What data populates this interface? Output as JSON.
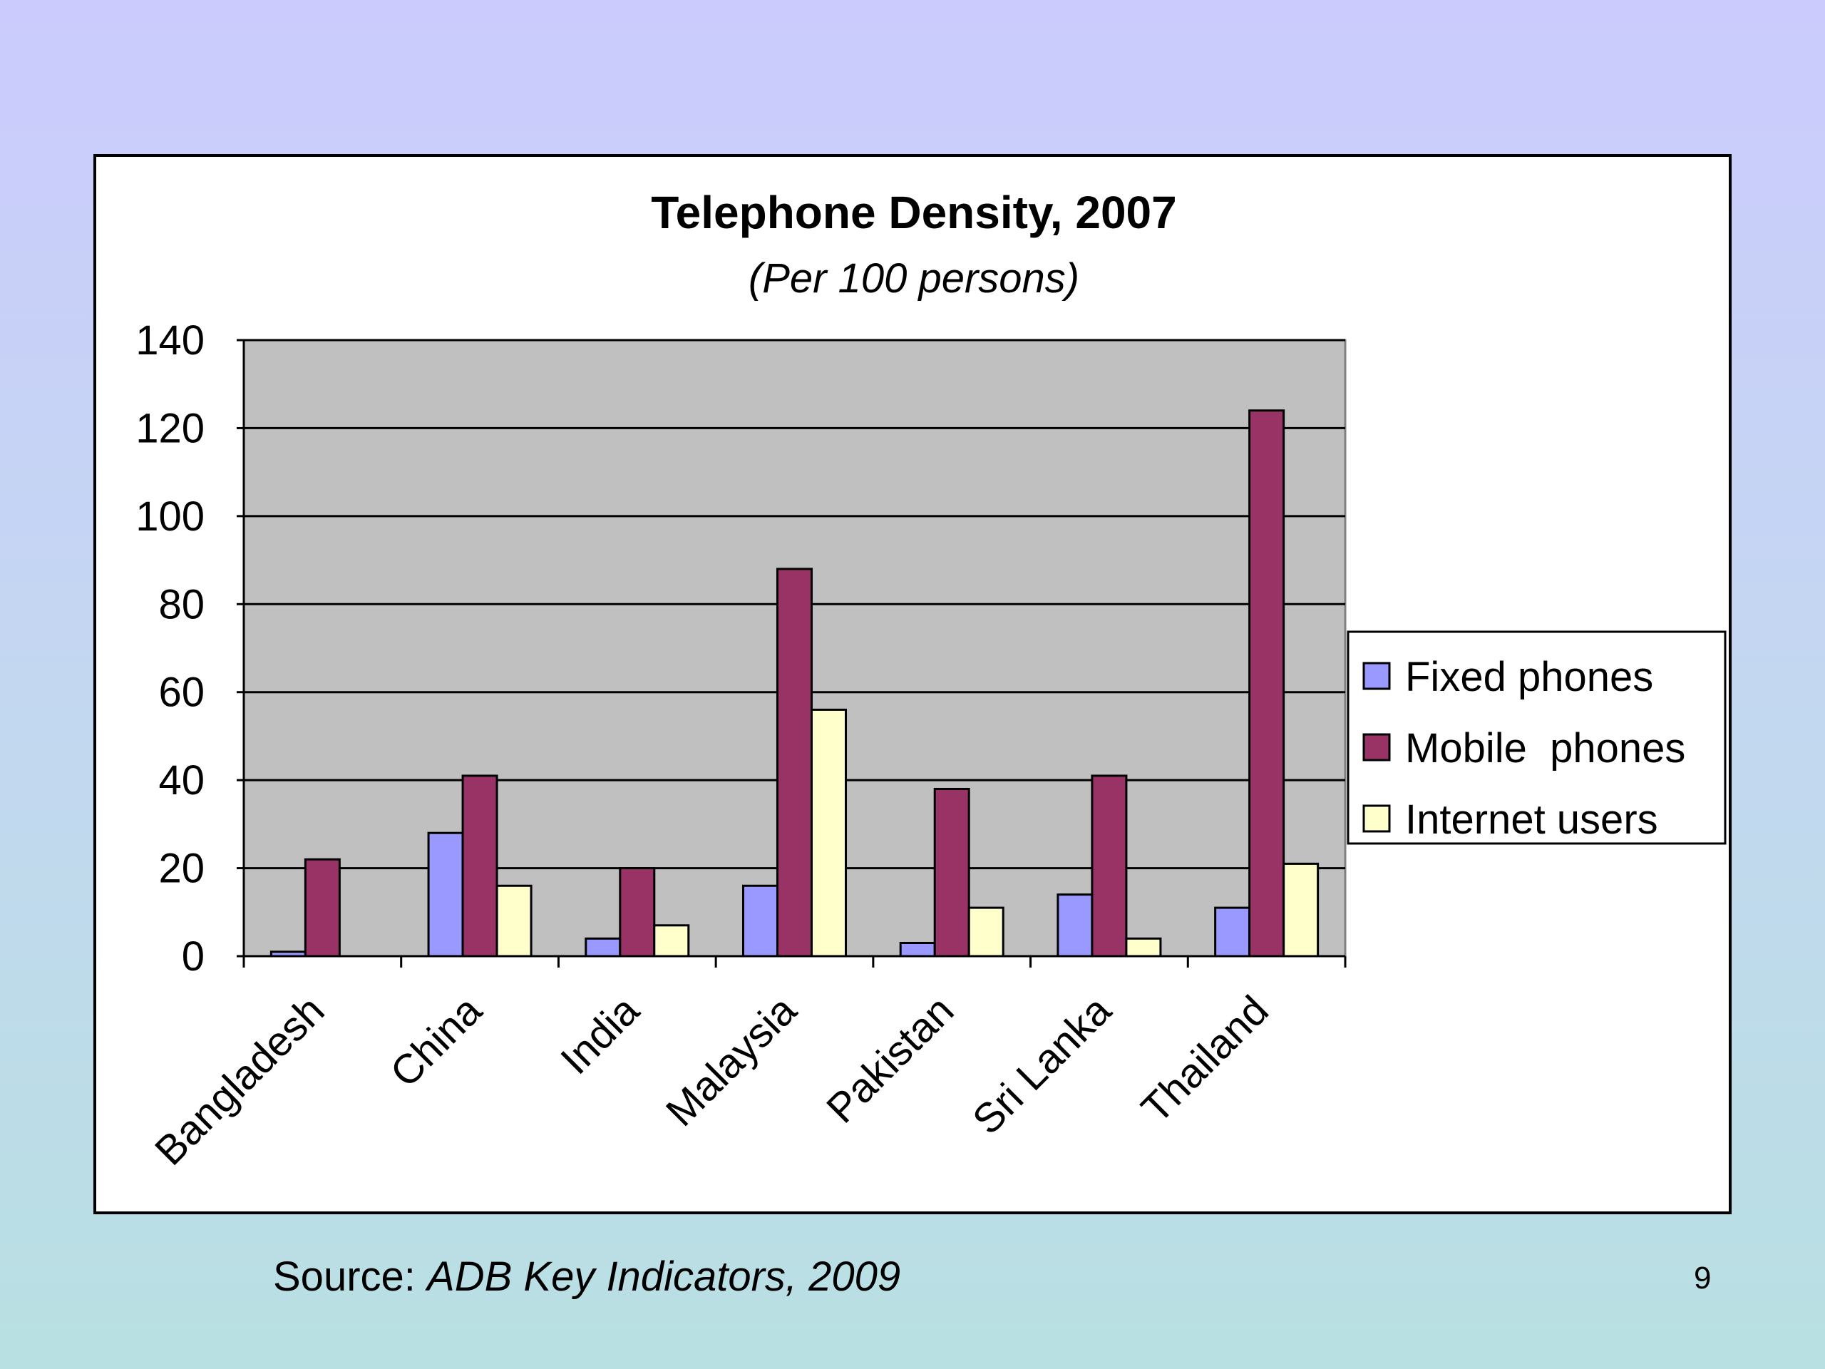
{
  "slide": {
    "source_prefix": "Source:",
    "source_title": "ADB Key Indicators, 2009",
    "page_number": "9"
  },
  "colors": {
    "plot_background": "#c0c0c0",
    "fixed": "#9999ff",
    "mobile": "#993366",
    "internet": "#ffffcc"
  },
  "chart_data": {
    "type": "bar",
    "title": "Telephone Density, 2007",
    "subtitle": "(Per 100 persons)",
    "xlabel": "",
    "ylabel": "",
    "ylim": [
      0,
      140
    ],
    "yticks": [
      0,
      20,
      40,
      60,
      80,
      100,
      120,
      140
    ],
    "grid": true,
    "legend_position": "right",
    "categories": [
      "Bangladesh",
      "China",
      "India",
      "Malaysia",
      "Pakistan",
      "Sri Lanka",
      "Thailand"
    ],
    "series": [
      {
        "name": "Fixed phones",
        "color": "#9999ff",
        "values": [
          1,
          28,
          4,
          16,
          3,
          14,
          11
        ]
      },
      {
        "name": "Mobile  phones",
        "color": "#993366",
        "values": [
          22,
          41,
          20,
          88,
          38,
          41,
          124
        ]
      },
      {
        "name": "Internet users",
        "color": "#ffffcc",
        "values": [
          0,
          16,
          7,
          56,
          11,
          4,
          21
        ]
      }
    ]
  }
}
